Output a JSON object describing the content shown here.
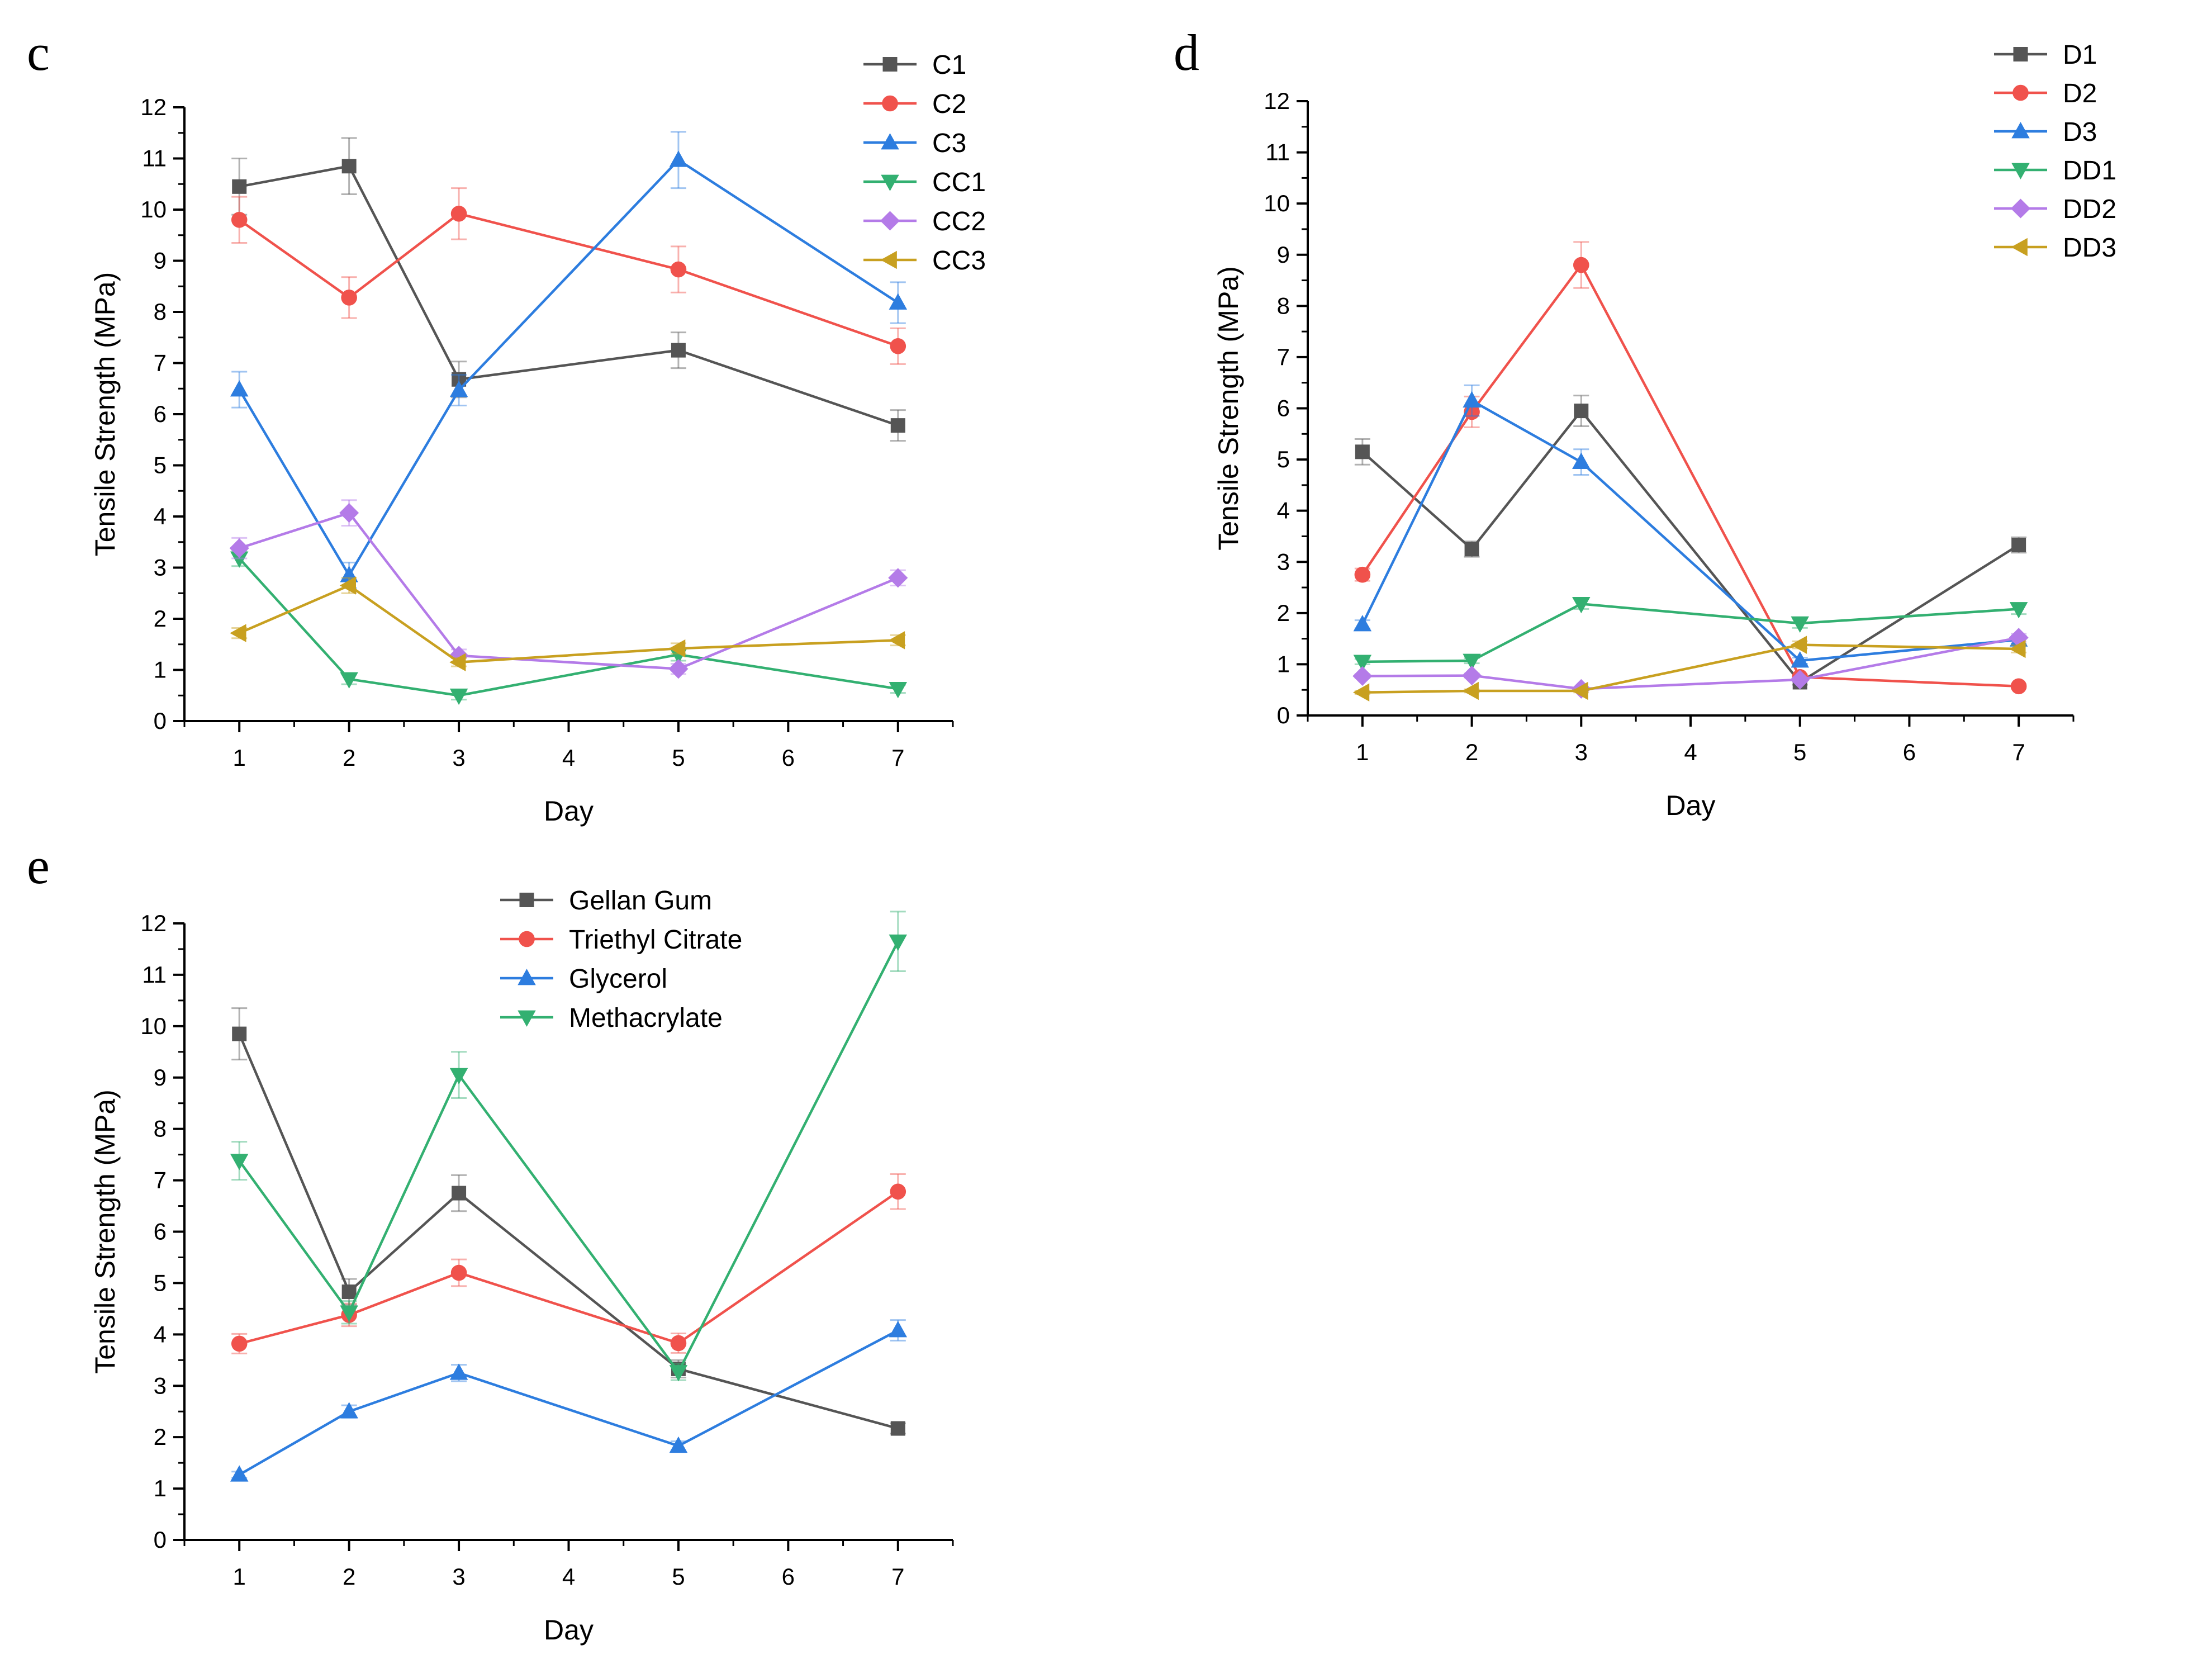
{
  "chart_data": [
    {
      "type": "line",
      "panel_label": "c",
      "title": "",
      "xlabel": "Day",
      "ylabel": "Tensile Strength (MPa)",
      "xlim": [
        0.5,
        7.5
      ],
      "ylim": [
        0,
        12
      ],
      "xticks": [
        1,
        2,
        3,
        4,
        5,
        6,
        7
      ],
      "yticks": [
        0,
        1,
        2,
        3,
        4,
        5,
        6,
        7,
        8,
        9,
        10,
        11,
        12
      ],
      "grid": false,
      "legend_position": "top-right",
      "x": [
        1,
        2,
        3,
        5,
        7
      ],
      "series": [
        {
          "name": "C1",
          "color": "#555555",
          "marker": "square",
          "values": [
            10.45,
            10.85,
            6.68,
            7.25,
            5.78
          ],
          "errors": [
            0.55,
            0.55,
            0.35,
            0.35,
            0.3
          ]
        },
        {
          "name": "C2",
          "color": "#f0524c",
          "marker": "circle",
          "values": [
            9.8,
            8.28,
            9.92,
            8.83,
            7.33
          ],
          "errors": [
            0.45,
            0.4,
            0.5,
            0.45,
            0.35
          ]
        },
        {
          "name": "C3",
          "color": "#2d7ddf",
          "marker": "triangle-up",
          "values": [
            6.48,
            2.85,
            6.47,
            10.97,
            8.18
          ],
          "errors": [
            0.35,
            0.25,
            0.3,
            0.55,
            0.4
          ]
        },
        {
          "name": "CC1",
          "color": "#33b071",
          "marker": "triangle-down",
          "values": [
            3.18,
            0.82,
            0.5,
            1.3,
            0.63
          ],
          "errors": [
            0.15,
            0.1,
            0.08,
            0.12,
            0.08
          ]
        },
        {
          "name": "CC2",
          "color": "#b47be8",
          "marker": "diamond",
          "values": [
            3.38,
            4.07,
            1.28,
            1.02,
            2.8
          ],
          "errors": [
            0.2,
            0.25,
            0.12,
            0.1,
            0.15
          ]
        },
        {
          "name": "CC3",
          "color": "#c8a020",
          "marker": "triangle-left",
          "values": [
            1.72,
            2.65,
            1.15,
            1.42,
            1.58
          ],
          "errors": [
            0.1,
            0.15,
            0.08,
            0.1,
            0.1
          ]
        }
      ]
    },
    {
      "type": "line",
      "panel_label": "d",
      "title": "",
      "xlabel": "Day",
      "ylabel": "Tensile Strength (MPa)",
      "xlim": [
        0.5,
        7.5
      ],
      "ylim": [
        0,
        12
      ],
      "xticks": [
        1,
        2,
        3,
        4,
        5,
        6,
        7
      ],
      "yticks": [
        0,
        1,
        2,
        3,
        4,
        5,
        6,
        7,
        8,
        9,
        10,
        11,
        12
      ],
      "grid": false,
      "legend_position": "top-right",
      "x": [
        1,
        2,
        3,
        5,
        7
      ],
      "series": [
        {
          "name": "D1",
          "color": "#555555",
          "marker": "square",
          "values": [
            5.15,
            3.25,
            5.95,
            0.65,
            3.33
          ],
          "errors": [
            0.25,
            0.15,
            0.3,
            0.05,
            0.15
          ]
        },
        {
          "name": "D2",
          "color": "#f0524c",
          "marker": "circle",
          "values": [
            2.75,
            5.93,
            8.8,
            0.75,
            0.57
          ],
          "errors": [
            0.12,
            0.3,
            0.45,
            0.05,
            0.04
          ]
        },
        {
          "name": "D3",
          "color": "#2d7ddf",
          "marker": "triangle-up",
          "values": [
            1.78,
            6.15,
            4.95,
            1.07,
            1.48
          ],
          "errors": [
            0.08,
            0.3,
            0.25,
            0.06,
            0.08
          ]
        },
        {
          "name": "DD1",
          "color": "#33b071",
          "marker": "triangle-down",
          "values": [
            1.05,
            1.07,
            2.18,
            1.8,
            2.08
          ],
          "errors": [
            0.05,
            0.05,
            0.1,
            0.09,
            0.1
          ]
        },
        {
          "name": "DD2",
          "color": "#b47be8",
          "marker": "diamond",
          "values": [
            0.77,
            0.78,
            0.52,
            0.7,
            1.52
          ],
          "errors": [
            0.04,
            0.04,
            0.03,
            0.04,
            0.08
          ]
        },
        {
          "name": "DD3",
          "color": "#c8a020",
          "marker": "triangle-left",
          "values": [
            0.45,
            0.48,
            0.48,
            1.38,
            1.3
          ],
          "errors": [
            0.03,
            0.03,
            0.03,
            0.07,
            0.07
          ]
        }
      ]
    },
    {
      "type": "line",
      "panel_label": "e",
      "title": "",
      "xlabel": "Day",
      "ylabel": "Tensile Strength (MPa)",
      "xlim": [
        0.5,
        7.5
      ],
      "ylim": [
        0,
        12
      ],
      "xticks": [
        1,
        2,
        3,
        4,
        5,
        6,
        7
      ],
      "yticks": [
        0,
        1,
        2,
        3,
        4,
        5,
        6,
        7,
        8,
        9,
        10,
        11,
        12
      ],
      "grid": false,
      "legend_position": "top-center",
      "x": [
        1,
        2,
        3,
        5,
        7
      ],
      "series": [
        {
          "name": "Gellan Gum",
          "color": "#555555",
          "marker": "square",
          "values": [
            9.85,
            4.83,
            6.75,
            3.33,
            2.17
          ],
          "errors": [
            0.5,
            0.25,
            0.35,
            0.17,
            0.1
          ]
        },
        {
          "name": "Triethyl Citrate",
          "color": "#f0524c",
          "marker": "circle",
          "values": [
            3.82,
            4.38,
            5.2,
            3.83,
            6.78
          ],
          "errors": [
            0.19,
            0.22,
            0.26,
            0.19,
            0.34
          ]
        },
        {
          "name": "Glycerol",
          "color": "#2d7ddf",
          "marker": "triangle-up",
          "values": [
            1.27,
            2.5,
            3.25,
            1.83,
            4.08
          ],
          "errors": [
            0.06,
            0.12,
            0.16,
            0.09,
            0.2
          ]
        },
        {
          "name": "Methacrylate",
          "color": "#33b071",
          "marker": "triangle-down",
          "values": [
            7.38,
            4.43,
            9.05,
            3.27,
            11.65
          ],
          "errors": [
            0.37,
            0.22,
            0.45,
            0.16,
            0.58
          ]
        }
      ]
    }
  ]
}
